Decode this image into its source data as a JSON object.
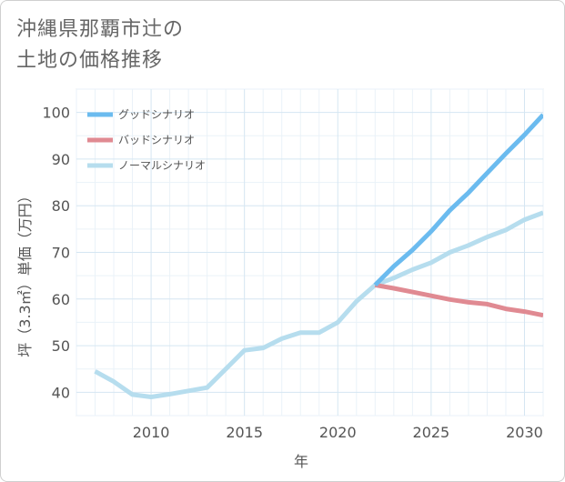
{
  "title": {
    "line1": "沖縄県那覇市辻の",
    "line2": "土地の価格推移"
  },
  "chart_data": {
    "type": "line",
    "xlabel": "年",
    "ylabel": "坪（3.3㎡）単価（万円）",
    "xlim": [
      2006,
      2031
    ],
    "ylim": [
      35,
      105
    ],
    "xticks": [
      2010,
      2015,
      2020,
      2025,
      2030
    ],
    "yticks": [
      40,
      50,
      60,
      70,
      80,
      90,
      100
    ],
    "grid": true,
    "legend_position": "top-left",
    "series": [
      {
        "name": "グッドシナリオ",
        "color": "#6bbbef",
        "x": [
          2022,
          2023,
          2024,
          2025,
          2026,
          2027,
          2028,
          2029,
          2030,
          2031
        ],
        "values": [
          63,
          67,
          70.5,
          74.5,
          79,
          82.8,
          87,
          91.2,
          95.2,
          99.5
        ]
      },
      {
        "name": "バッドシナリオ",
        "color": "#e08a92",
        "x": [
          2022,
          2023,
          2024,
          2025,
          2026,
          2027,
          2028,
          2029,
          2030,
          2031
        ],
        "values": [
          63,
          62.3,
          61.5,
          60.7,
          59.9,
          59.3,
          58.9,
          57.9,
          57.3,
          56.5
        ]
      },
      {
        "name": "ノーマルシナリオ",
        "color": "#b6ddee",
        "x": [
          2007,
          2008,
          2009,
          2010,
          2011,
          2012,
          2013,
          2014,
          2015,
          2016,
          2017,
          2018,
          2019,
          2020,
          2021,
          2022,
          2023,
          2024,
          2025,
          2026,
          2027,
          2028,
          2029,
          2030,
          2031
        ],
        "values": [
          44.5,
          42.3,
          39.5,
          39,
          39.6,
          40.3,
          41,
          45,
          49,
          49.5,
          51.5,
          52.8,
          52.8,
          55,
          59.5,
          63,
          64.5,
          66.3,
          67.8,
          70,
          71.5,
          73.3,
          74.8,
          77,
          78.5
        ]
      }
    ]
  }
}
